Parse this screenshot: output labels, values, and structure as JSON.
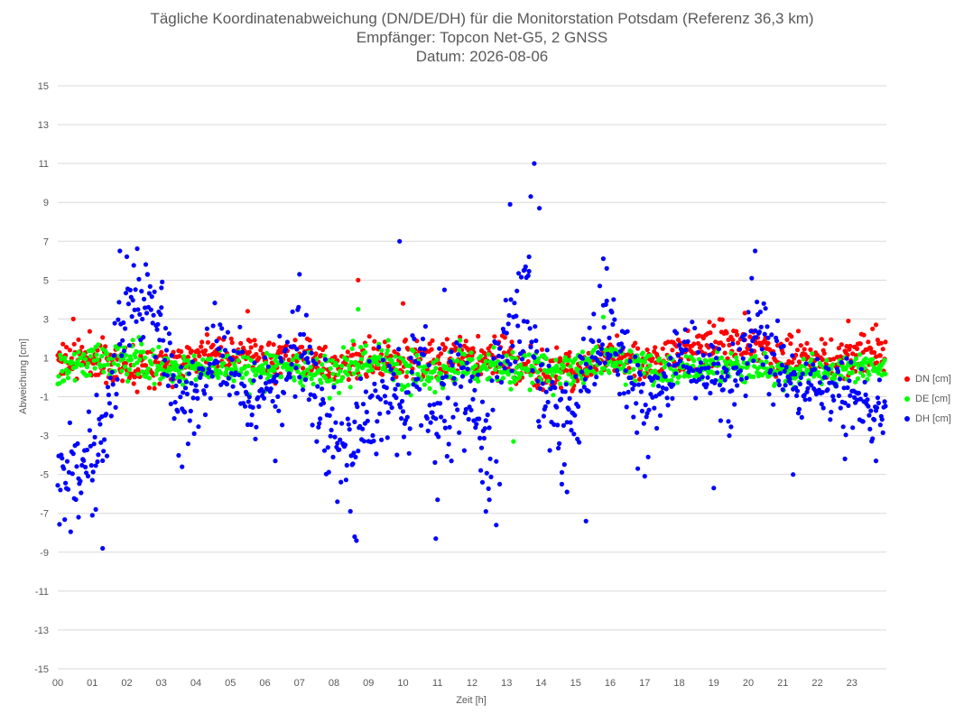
{
  "chart_data": {
    "type": "scatter",
    "title": "Tägliche Koordinatenabweichung (DN/DE/DH) für die Monitorstation Potsdam (Referenz 36,3 km)",
    "subtitle": "Empfänger: Topcon Net-G5, 2 GNSS",
    "date_line": "Datum: 2026-08-06",
    "xlabel": "Zeit [h]",
    "ylabel": "Abweichung [cm]",
    "xlim": [
      0,
      24
    ],
    "ylim": [
      -15,
      15
    ],
    "x_ticks": [
      0,
      1,
      2,
      3,
      4,
      5,
      6,
      7,
      8,
      9,
      10,
      11,
      12,
      13,
      14,
      15,
      16,
      17,
      18,
      19,
      20,
      21,
      22,
      23
    ],
    "x_tick_labels": [
      "00",
      "01",
      "02",
      "03",
      "04",
      "05",
      "06",
      "07",
      "08",
      "09",
      "10",
      "11",
      "12",
      "13",
      "14",
      "15",
      "16",
      "17",
      "18",
      "19",
      "20",
      "21",
      "22",
      "23"
    ],
    "y_ticks": [
      -15,
      -13,
      -11,
      -9,
      -7,
      -5,
      -3,
      -1,
      1,
      3,
      5,
      7,
      9,
      11,
      13,
      15
    ],
    "y_tick_labels": [
      "-15",
      "-13",
      "-11",
      "-9",
      "-7",
      "-5",
      "-3",
      "-1",
      "1",
      "3",
      "5",
      "7",
      "9",
      "11",
      "13",
      "15"
    ],
    "grid": "horizontal",
    "legend_position": "right",
    "sample_interval_h": 0.025,
    "series": [
      {
        "name": "DN [cm]",
        "color": "#ff0000",
        "profile": [
          [
            0,
            0.9
          ],
          [
            1,
            1.0
          ],
          [
            2,
            0.6
          ],
          [
            3,
            0.7
          ],
          [
            4,
            1.1
          ],
          [
            5,
            1.2
          ],
          [
            6,
            0.9
          ],
          [
            7,
            1.1
          ],
          [
            8,
            0.6
          ],
          [
            9,
            0.8
          ],
          [
            10,
            0.9
          ],
          [
            11,
            1.0
          ],
          [
            12,
            1.1
          ],
          [
            13,
            0.9
          ],
          [
            14,
            0.3
          ],
          [
            15,
            0.2
          ],
          [
            16,
            1.1
          ],
          [
            17,
            0.8
          ],
          [
            18,
            1.4
          ],
          [
            19,
            1.6
          ],
          [
            20,
            1.8
          ],
          [
            21,
            1.0
          ],
          [
            22,
            0.9
          ],
          [
            23,
            1.1
          ],
          [
            24,
            1.2
          ]
        ],
        "scatter": [
          1.1,
          1.1,
          1.1,
          0.9,
          1.0,
          0.9,
          1.0,
          0.9,
          0.9,
          1.0,
          1.0,
          1.1,
          0.9,
          1.2,
          1.2,
          1.0,
          0.9,
          1.1,
          1.1,
          1.2,
          0.9,
          1.1,
          1.0,
          0.9,
          0.9
        ]
      },
      {
        "name": "DE [cm]",
        "color": "#00ff00",
        "profile": [
          [
            0,
            0.5
          ],
          [
            1,
            0.8
          ],
          [
            2,
            1.0
          ],
          [
            3,
            0.5
          ],
          [
            4,
            0.4
          ],
          [
            5,
            0.4
          ],
          [
            6,
            0.3
          ],
          [
            7,
            0.5
          ],
          [
            8,
            0.2
          ],
          [
            9,
            0.9
          ],
          [
            10,
            0.5
          ],
          [
            11,
            0.2
          ],
          [
            12,
            0.6
          ],
          [
            13,
            0.4
          ],
          [
            14,
            0.3
          ],
          [
            15,
            0.4
          ],
          [
            16,
            0.9
          ],
          [
            17,
            0.6
          ],
          [
            18,
            0.3
          ],
          [
            19,
            0.5
          ],
          [
            20,
            0.6
          ],
          [
            21,
            0.2
          ],
          [
            22,
            0.3
          ],
          [
            23,
            0.4
          ],
          [
            24,
            0.4
          ]
        ],
        "scatter": [
          0.9,
          0.9,
          1.0,
          0.8,
          0.8,
          0.8,
          0.9,
          0.9,
          1.0,
          1.1,
          1.1,
          1.1,
          1.1,
          1.0,
          1.0,
          1.0,
          1.0,
          0.9,
          0.8,
          0.8,
          0.8,
          0.7,
          0.7,
          0.7,
          0.7
        ]
      },
      {
        "name": "DH [cm]",
        "color": "#0000ff",
        "profile": [
          [
            0,
            -5.0
          ],
          [
            0.5,
            -4.5
          ],
          [
            1,
            -4.0
          ],
          [
            1.4,
            -2.5
          ],
          [
            1.7,
            1.0
          ],
          [
            2,
            4.5
          ],
          [
            2.5,
            4.2
          ],
          [
            3,
            3.0
          ],
          [
            3.5,
            -1.5
          ],
          [
            4,
            -1.0
          ],
          [
            4.5,
            1.5
          ],
          [
            5,
            0.5
          ],
          [
            5.5,
            -1.0
          ],
          [
            6,
            -0.5
          ],
          [
            6.5,
            0.2
          ],
          [
            7,
            1.5
          ],
          [
            7.5,
            -1.0
          ],
          [
            8,
            -3.5
          ],
          [
            8.5,
            -4.5
          ],
          [
            9,
            -2.0
          ],
          [
            9.5,
            -1.0
          ],
          [
            10,
            -2.0
          ],
          [
            10.5,
            0.5
          ],
          [
            11,
            -2.0
          ],
          [
            11.5,
            0.5
          ],
          [
            12,
            -1.0
          ],
          [
            12.5,
            -3.0
          ],
          [
            13,
            2.0
          ],
          [
            13.6,
            4.0
          ],
          [
            14,
            -1.0
          ],
          [
            14.5,
            -2.5
          ],
          [
            15,
            -2.0
          ],
          [
            15.5,
            1.0
          ],
          [
            16,
            2.5
          ],
          [
            16.5,
            0.5
          ],
          [
            17,
            -2.0
          ],
          [
            17.5,
            -1.0
          ],
          [
            18,
            1.5
          ],
          [
            18.5,
            0.5
          ],
          [
            19,
            1.0
          ],
          [
            19.5,
            -1.0
          ],
          [
            20,
            1.5
          ],
          [
            20.3,
            3.0
          ],
          [
            20.6,
            0.8
          ],
          [
            21,
            0.5
          ],
          [
            21.5,
            -0.5
          ],
          [
            22,
            -0.5
          ],
          [
            22.5,
            -0.5
          ],
          [
            23,
            -1.0
          ],
          [
            23.5,
            -1.5
          ],
          [
            24,
            -2.0
          ]
        ],
        "scatter": [
          2.5,
          2.5,
          2.5,
          2.2,
          2.0,
          2.0,
          2.0,
          2.2,
          2.5,
          2.8,
          2.8,
          2.8,
          3.0,
          3.5,
          3.2,
          2.8,
          2.2,
          2.0,
          2.0,
          2.0,
          2.2,
          2.0,
          1.8,
          1.8,
          1.8
        ]
      }
    ],
    "outliers": [
      {
        "series": "DN [cm]",
        "x": 8.7,
        "y": 5.0
      },
      {
        "series": "DN [cm]",
        "x": 10.0,
        "y": 3.8
      },
      {
        "series": "DN [cm]",
        "x": 5.5,
        "y": 3.4
      },
      {
        "series": "DN [cm]",
        "x": 0.45,
        "y": 3.0
      },
      {
        "series": "DN [cm]",
        "x": 19.9,
        "y": 3.3
      },
      {
        "series": "DN [cm]",
        "x": 22.9,
        "y": 2.9
      },
      {
        "series": "DN [cm]",
        "x": 23.7,
        "y": 2.7
      },
      {
        "series": "DE [cm]",
        "x": 8.7,
        "y": 3.5
      },
      {
        "series": "DE [cm]",
        "x": 15.8,
        "y": 3.1
      },
      {
        "series": "DE [cm]",
        "x": 13.2,
        "y": -3.3
      },
      {
        "series": "DH [cm]",
        "x": 1.8,
        "y": 6.5
      },
      {
        "series": "DH [cm]",
        "x": 1.3,
        "y": -8.8
      },
      {
        "series": "DH [cm]",
        "x": 0.6,
        "y": -7.2
      },
      {
        "series": "DH [cm]",
        "x": 1.0,
        "y": -7.1
      },
      {
        "series": "DH [cm]",
        "x": 1.1,
        "y": -6.8
      },
      {
        "series": "DH [cm]",
        "x": 2.6,
        "y": 5.3
      },
      {
        "series": "DH [cm]",
        "x": 3.0,
        "y": 4.6
      },
      {
        "series": "DH [cm]",
        "x": 3.6,
        "y": -4.6
      },
      {
        "series": "DH [cm]",
        "x": 6.3,
        "y": -4.3
      },
      {
        "series": "DH [cm]",
        "x": 7.0,
        "y": 5.3
      },
      {
        "series": "DH [cm]",
        "x": 7.2,
        "y": 3.2
      },
      {
        "series": "DH [cm]",
        "x": 8.1,
        "y": -6.4
      },
      {
        "series": "DH [cm]",
        "x": 8.6,
        "y": -8.2
      },
      {
        "series": "DH [cm]",
        "x": 8.65,
        "y": -8.4
      },
      {
        "series": "DH [cm]",
        "x": 9.9,
        "y": 7.0
      },
      {
        "series": "DH [cm]",
        "x": 11.0,
        "y": -6.3
      },
      {
        "series": "DH [cm]",
        "x": 10.95,
        "y": -8.3
      },
      {
        "series": "DH [cm]",
        "x": 11.2,
        "y": 4.5
      },
      {
        "series": "DH [cm]",
        "x": 11.4,
        "y": -4.3
      },
      {
        "series": "DH [cm]",
        "x": 12.3,
        "y": -5.4
      },
      {
        "series": "DH [cm]",
        "x": 12.5,
        "y": -6.3
      },
      {
        "series": "DH [cm]",
        "x": 12.4,
        "y": -6.9
      },
      {
        "series": "DH [cm]",
        "x": 12.7,
        "y": -7.6
      },
      {
        "series": "DH [cm]",
        "x": 12.8,
        "y": -5.5
      },
      {
        "series": "DH [cm]",
        "x": 13.1,
        "y": 8.9
      },
      {
        "series": "DH [cm]",
        "x": 13.5,
        "y": 5.5
      },
      {
        "series": "DH [cm]",
        "x": 13.7,
        "y": 9.3
      },
      {
        "series": "DH [cm]",
        "x": 13.8,
        "y": 11.0
      },
      {
        "series": "DH [cm]",
        "x": 13.95,
        "y": 8.7
      },
      {
        "series": "DH [cm]",
        "x": 13.65,
        "y": 6.2
      },
      {
        "series": "DH [cm]",
        "x": 14.6,
        "y": -5.5
      },
      {
        "series": "DH [cm]",
        "x": 14.75,
        "y": -5.9
      },
      {
        "series": "DH [cm]",
        "x": 15.3,
        "y": -7.4
      },
      {
        "series": "DH [cm]",
        "x": 15.8,
        "y": 6.1
      },
      {
        "series": "DH [cm]",
        "x": 15.9,
        "y": 5.6
      },
      {
        "series": "DH [cm]",
        "x": 15.7,
        "y": 4.7
      },
      {
        "series": "DH [cm]",
        "x": 16.8,
        "y": -4.7
      },
      {
        "series": "DH [cm]",
        "x": 19.0,
        "y": -5.7
      },
      {
        "series": "DH [cm]",
        "x": 20.2,
        "y": 6.5
      },
      {
        "series": "DH [cm]",
        "x": 20.1,
        "y": 5.1
      },
      {
        "series": "DH [cm]",
        "x": 21.3,
        "y": -5.0
      },
      {
        "series": "DH [cm]",
        "x": 22.8,
        "y": -4.2
      },
      {
        "series": "DH [cm]",
        "x": 23.7,
        "y": -4.3
      }
    ]
  },
  "legend": [
    {
      "label": "DN [cm]",
      "color": "#ff0000"
    },
    {
      "label": "DE [cm]",
      "color": "#00ff00"
    },
    {
      "label": "DH [cm]",
      "color": "#0000ff"
    }
  ]
}
